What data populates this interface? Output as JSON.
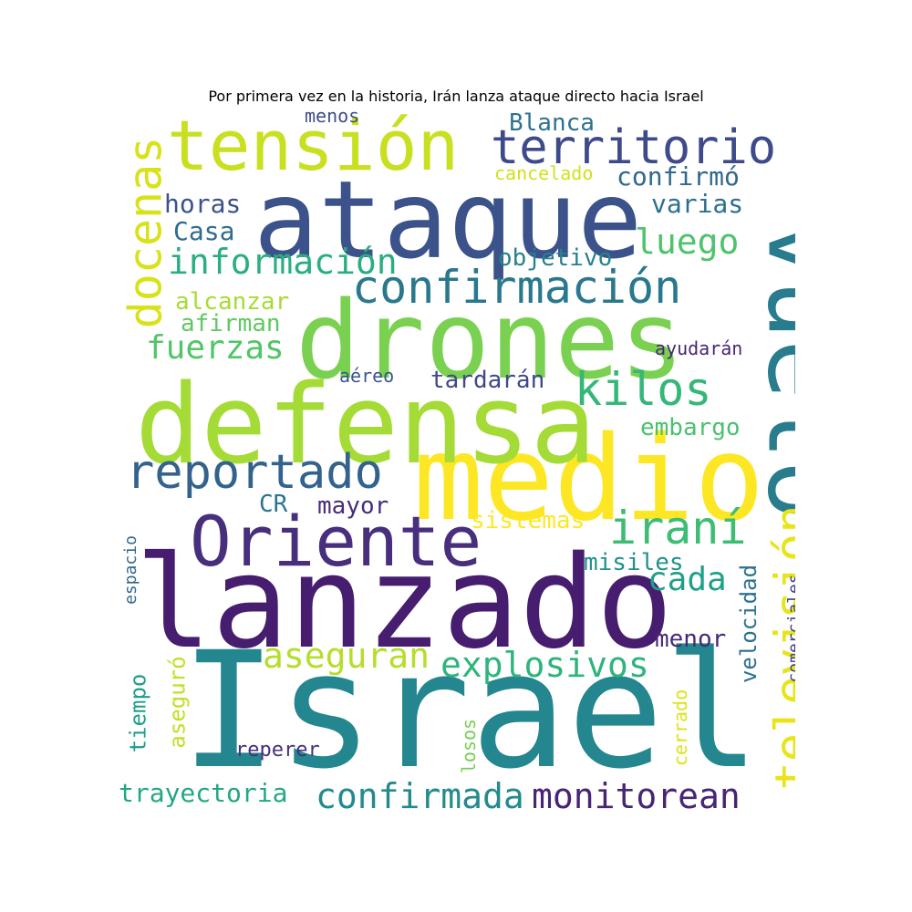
{
  "title": "Por primera vez en la historia, Irán lanza ataque directo hacia Israel",
  "palette": {
    "yellow": "#fde725",
    "lime": "#a0da39",
    "green": "#4ac16d",
    "teal": "#1fa187",
    "cyan": "#277f8e",
    "blue": "#365c8d",
    "indigo": "#46327e",
    "purple": "#440154"
  },
  "words": [
    {
      "text": "Israel",
      "color": "#24868e"
    },
    {
      "text": "lanzado",
      "color": "#471e6f"
    },
    {
      "text": "medio",
      "color": "#fde725"
    },
    {
      "text": "defensa",
      "color": "#a5db36"
    },
    {
      "text": "drones",
      "color": "#7ad151"
    },
    {
      "text": "ataque",
      "color": "#3b528b"
    },
    {
      "text": "vuelo",
      "color": "#287c8e"
    },
    {
      "text": "Oriente",
      "color": "#472f7d"
    },
    {
      "text": "tensión",
      "color": "#c8e020"
    },
    {
      "text": "televisión",
      "color": "#e8e419"
    },
    {
      "text": "territorio",
      "color": "#3e4a89"
    },
    {
      "text": "reportado",
      "color": "#33638d"
    },
    {
      "text": "confirmación",
      "color": "#2a788e"
    },
    {
      "text": "docenas",
      "color": "#d8e219"
    },
    {
      "text": "iraní",
      "color": "#3dbc74"
    },
    {
      "text": "kilos",
      "color": "#35b779"
    },
    {
      "text": "información",
      "color": "#29af7f"
    },
    {
      "text": "confirmada",
      "color": "#238a8d"
    },
    {
      "text": "monitorean",
      "color": "#482475"
    },
    {
      "text": "explosivos",
      "color": "#2fb47c"
    },
    {
      "text": "aseguran",
      "color": "#b5de2b"
    },
    {
      "text": "luego",
      "color": "#4ec36b"
    },
    {
      "text": "fuerzas",
      "color": "#52c569"
    },
    {
      "text": "cada",
      "color": "#1fa088"
    },
    {
      "text": "Blanca",
      "color": "#2c728e"
    },
    {
      "text": "trayectoria",
      "color": "#22a785"
    },
    {
      "text": "horas",
      "color": "#3b528b"
    },
    {
      "text": "confirmó",
      "color": "#31688e"
    },
    {
      "text": "varias",
      "color": "#2d708e"
    },
    {
      "text": "Casa",
      "color": "#2f6c8e"
    },
    {
      "text": "objetivo",
      "color": "#26828e"
    },
    {
      "text": "alcanzar",
      "color": "#a8db34"
    },
    {
      "text": "afirman",
      "color": "#5ec962"
    },
    {
      "text": "tardarán",
      "color": "#3e4989"
    },
    {
      "text": "embargo",
      "color": "#4ac16d"
    },
    {
      "text": "mayor",
      "color": "#472d7b"
    },
    {
      "text": "CR",
      "color": "#2a768e"
    },
    {
      "text": "sistemas",
      "color": "#fde725"
    },
    {
      "text": "misiles",
      "color": "#21918c"
    },
    {
      "text": "menor",
      "color": "#482878"
    },
    {
      "text": "velocidad",
      "color": "#2c718e"
    },
    {
      "text": "asegurό",
      "color": "#c2df23"
    },
    {
      "text": "tiempo",
      "color": "#1f9e89"
    },
    {
      "text": "reperer",
      "color": "#46307e"
    },
    {
      "text": "cerrado",
      "color": "#dde318"
    },
    {
      "text": "losos",
      "color": "#75d054"
    },
    {
      "text": "comerciales",
      "color": "#414487"
    },
    {
      "text": "espacio",
      "color": "#31688e"
    },
    {
      "text": "ayudarán",
      "color": "#482677"
    },
    {
      "text": "aéreo",
      "color": "#39568c"
    },
    {
      "text": "cancelado",
      "color": "#d0e11c"
    },
    {
      "text": "menos",
      "color": "#3e4c8a"
    }
  ]
}
